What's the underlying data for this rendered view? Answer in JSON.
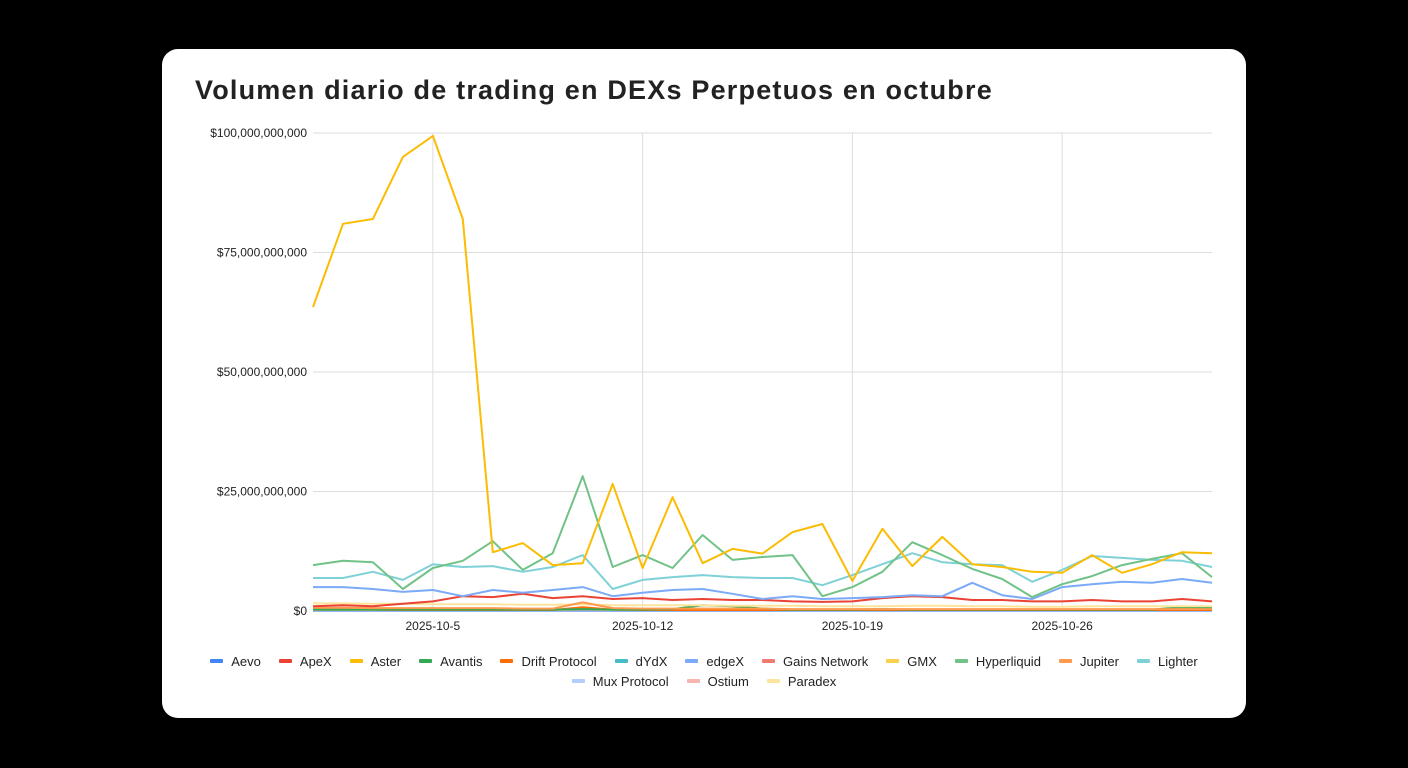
{
  "chart_data": {
    "type": "line",
    "title": "Volumen diario de trading en DEXs Perpetuos en octubre",
    "xlabel": "",
    "ylabel": "",
    "x": [
      "2025-10-1",
      "2025-10-2",
      "2025-10-3",
      "2025-10-4",
      "2025-10-5",
      "2025-10-6",
      "2025-10-7",
      "2025-10-8",
      "2025-10-9",
      "2025-10-10",
      "2025-10-11",
      "2025-10-12",
      "2025-10-13",
      "2025-10-14",
      "2025-10-15",
      "2025-10-16",
      "2025-10-17",
      "2025-10-18",
      "2025-10-19",
      "2025-10-20",
      "2025-10-21",
      "2025-10-22",
      "2025-10-23",
      "2025-10-24",
      "2025-10-25",
      "2025-10-26",
      "2025-10-27",
      "2025-10-28",
      "2025-10-29",
      "2025-10-30",
      "2025-10-31"
    ],
    "x_ticks": [
      "2025-10-5",
      "2025-10-12",
      "2025-10-19",
      "2025-10-26"
    ],
    "y_ticks": [
      "$0",
      "$25,000,000,000",
      "$50,000,000,000",
      "$75,000,000,000",
      "$100,000,000,000"
    ],
    "y_tick_values": [
      0,
      25000000000,
      50000000000,
      75000000000,
      100000000000
    ],
    "ylim": [
      0,
      100000000000
    ],
    "grid": true,
    "legend_position": "bottom",
    "unit": "USD (billions in series values)",
    "series": [
      {
        "name": "Aevo",
        "color": "#4285f4",
        "values": [
          0.1,
          0.1,
          0.1,
          0.1,
          0.1,
          0.1,
          0.1,
          0.1,
          0.1,
          0.1,
          0.1,
          0.1,
          0.1,
          0.1,
          0.1,
          0.1,
          0.1,
          0.1,
          0.1,
          0.1,
          0.1,
          0.1,
          0.1,
          0.1,
          0.1,
          0.1,
          0.1,
          0.1,
          0.1,
          0.1,
          0.1
        ]
      },
      {
        "name": "ApeX",
        "color": "#ea4335",
        "values": [
          1.0,
          1.2,
          1.0,
          1.5,
          2.0,
          3.1,
          2.9,
          3.6,
          2.7,
          3.1,
          2.5,
          2.7,
          2.3,
          2.5,
          2.3,
          2.3,
          2.0,
          1.9,
          2.0,
          2.7,
          3.1,
          2.9,
          2.3,
          2.3,
          2.0,
          2.0,
          2.3,
          2.0,
          2.0,
          2.5,
          2.0
        ]
      },
      {
        "name": "Aster",
        "color": "#fbbc04",
        "values": [
          63.6,
          81.0,
          82.0,
          95.0,
          99.4,
          82.0,
          12.3,
          14.2,
          9.6,
          10.0,
          26.6,
          9.0,
          23.8,
          10.0,
          13.0,
          12.0,
          16.5,
          18.2,
          6.3,
          17.2,
          9.4,
          15.5,
          9.8,
          9.2,
          8.2,
          8.0,
          11.7,
          8.0,
          9.8,
          12.3,
          12.1
        ]
      },
      {
        "name": "Avantis",
        "color": "#34a853",
        "values": [
          0.3,
          0.3,
          0.3,
          0.3,
          0.3,
          0.3,
          0.3,
          0.3,
          0.3,
          0.4,
          0.3,
          0.3,
          0.4,
          1.2,
          1.0,
          0.5,
          0.3,
          0.3,
          0.3,
          0.4,
          0.3,
          0.3,
          0.3,
          0.3,
          0.3,
          0.3,
          0.3,
          0.3,
          0.3,
          0.8,
          0.6
        ]
      },
      {
        "name": "Drift Protocol",
        "color": "#ff6d01",
        "values": [
          0.3,
          0.3,
          0.3,
          0.2,
          0.2,
          0.2,
          0.2,
          0.2,
          0.2,
          0.8,
          0.3,
          0.2,
          0.2,
          0.2,
          0.2,
          0.2,
          0.2,
          0.2,
          0.2,
          0.2,
          0.2,
          0.2,
          0.2,
          0.2,
          0.2,
          0.2,
          0.2,
          0.2,
          0.2,
          0.2,
          0.2
        ]
      },
      {
        "name": "dYdX",
        "color": "#46bdc6",
        "values": [
          0.3,
          0.3,
          0.3,
          0.3,
          0.3,
          0.3,
          0.3,
          0.3,
          0.3,
          0.4,
          0.3,
          0.3,
          0.3,
          0.3,
          0.3,
          0.3,
          0.3,
          0.2,
          0.2,
          0.2,
          0.2,
          0.2,
          0.2,
          0.2,
          0.2,
          0.2,
          0.2,
          0.2,
          0.2,
          0.2,
          0.2
        ]
      },
      {
        "name": "edgeX",
        "color": "#7baaf7",
        "values": [
          5.0,
          5.0,
          4.6,
          4.0,
          4.4,
          3.1,
          4.4,
          3.8,
          4.4,
          5.0,
          3.1,
          3.8,
          4.4,
          4.6,
          3.6,
          2.5,
          3.1,
          2.5,
          2.7,
          2.9,
          3.3,
          3.1,
          5.9,
          3.3,
          2.5,
          5.0,
          5.6,
          6.1,
          5.9,
          6.7,
          5.9
        ]
      },
      {
        "name": "Gains Network",
        "color": "#f07b72",
        "values": [
          0.3,
          0.3,
          0.3,
          0.2,
          0.2,
          0.2,
          0.2,
          0.2,
          0.2,
          0.3,
          0.2,
          0.2,
          0.2,
          0.2,
          0.2,
          0.2,
          0.2,
          0.2,
          0.2,
          0.2,
          0.2,
          0.2,
          0.2,
          0.2,
          0.2,
          0.2,
          0.2,
          0.2,
          0.2,
          0.2,
          0.2
        ]
      },
      {
        "name": "GMX",
        "color": "#fcd04f",
        "values": [
          0.4,
          0.4,
          0.4,
          0.3,
          0.3,
          0.3,
          0.3,
          0.3,
          0.3,
          0.5,
          0.3,
          0.3,
          0.3,
          0.3,
          0.3,
          0.3,
          0.3,
          0.3,
          0.3,
          0.3,
          0.3,
          0.3,
          0.3,
          0.3,
          0.3,
          0.3,
          0.3,
          0.3,
          0.3,
          0.3,
          0.3
        ]
      },
      {
        "name": "Hyperliquid",
        "color": "#71c287",
        "values": [
          9.6,
          10.5,
          10.2,
          4.6,
          9.0,
          10.5,
          14.6,
          8.6,
          12.1,
          28.2,
          9.2,
          11.7,
          9.0,
          15.9,
          10.7,
          11.3,
          11.7,
          3.1,
          5.0,
          8.2,
          14.4,
          11.7,
          8.8,
          6.7,
          2.9,
          5.6,
          7.3,
          9.6,
          10.9,
          12.1,
          7.1
        ]
      },
      {
        "name": "Jupiter",
        "color": "#ff994d",
        "values": [
          0.7,
          0.7,
          0.6,
          0.6,
          0.6,
          0.6,
          0.6,
          0.5,
          0.5,
          1.8,
          0.6,
          0.5,
          0.5,
          0.5,
          0.5,
          0.5,
          0.4,
          0.4,
          0.4,
          0.4,
          0.4,
          0.4,
          0.4,
          0.4,
          0.4,
          0.4,
          0.4,
          0.4,
          0.4,
          0.4,
          0.4
        ]
      },
      {
        "name": "Lighter",
        "color": "#7ed1d7",
        "values": [
          6.9,
          6.9,
          8.2,
          6.5,
          9.8,
          9.2,
          9.4,
          8.2,
          9.2,
          11.7,
          4.6,
          6.5,
          7.1,
          7.5,
          7.1,
          6.9,
          6.9,
          5.4,
          7.5,
          9.8,
          12.1,
          10.2,
          9.8,
          9.6,
          6.1,
          8.6,
          11.5,
          11.1,
          10.7,
          10.5,
          9.2
        ]
      },
      {
        "name": "Mux Protocol",
        "color": "#b3cefb",
        "values": [
          0.05,
          0.05,
          0.05,
          0.05,
          0.05,
          0.05,
          0.05,
          0.05,
          0.05,
          0.05,
          0.05,
          0.05,
          0.05,
          0.05,
          0.05,
          0.05,
          0.05,
          0.05,
          0.05,
          0.05,
          0.05,
          0.05,
          0.05,
          0.05,
          0.05,
          0.05,
          0.05,
          0.05,
          0.05,
          0.05,
          0.05
        ]
      },
      {
        "name": "Ostium",
        "color": "#f7b4ae",
        "values": [
          0.2,
          0.2,
          0.2,
          0.2,
          0.2,
          0.2,
          0.2,
          0.2,
          0.2,
          0.3,
          0.2,
          0.2,
          0.2,
          0.2,
          0.2,
          0.2,
          0.2,
          0.2,
          0.2,
          0.2,
          0.2,
          0.2,
          0.2,
          0.2,
          0.2,
          0.2,
          0.2,
          0.2,
          0.2,
          0.2,
          0.2
        ]
      },
      {
        "name": "Paradex",
        "color": "#fde49b",
        "values": [
          1.6,
          1.6,
          1.5,
          1.5,
          1.4,
          1.4,
          1.4,
          1.3,
          1.3,
          1.4,
          1.2,
          1.2,
          1.2,
          1.2,
          1.1,
          1.1,
          1.1,
          1.0,
          1.0,
          1.0,
          1.1,
          1.1,
          1.0,
          1.0,
          0.9,
          0.9,
          1.0,
          1.0,
          1.0,
          1.0,
          1.0
        ]
      }
    ]
  }
}
